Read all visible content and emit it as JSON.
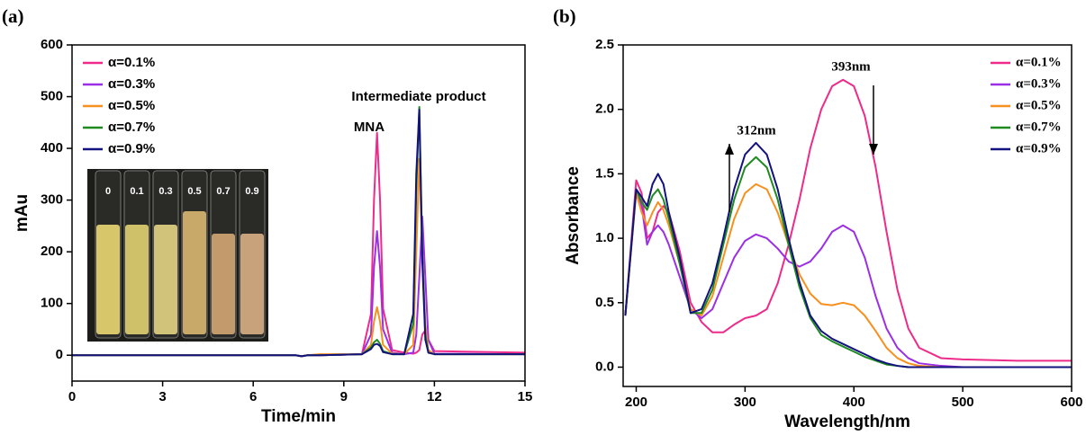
{
  "chart_data": [
    {
      "type": "line",
      "panel_label": "(a)",
      "x_label": "Time/min",
      "y_label": "mAu",
      "annotations": [
        "MNA",
        "Intermediate product"
      ],
      "inset_labels": [
        "0",
        "0.1",
        "0.3",
        "0.5",
        "0.7",
        "0.9"
      ],
      "x": [
        0,
        7.4,
        7.6,
        7.8,
        8.2,
        9.6,
        9.9,
        10.0,
        10.1,
        10.2,
        10.3,
        10.6,
        11.0,
        11.3,
        11.4,
        11.5,
        11.6,
        11.7,
        11.8,
        12.0,
        15
      ],
      "series": [
        {
          "name": "α=0.1%",
          "color": "#ee2a8a",
          "values": [
            0,
            0,
            -2,
            0,
            0,
            2,
            80,
            300,
            430,
            300,
            90,
            10,
            5,
            3,
            5,
            10,
            40,
            48,
            30,
            8,
            5
          ]
        },
        {
          "name": "α=0.3%",
          "color": "#9b2fe6",
          "values": [
            0,
            0,
            -2,
            0,
            0,
            2,
            40,
            170,
            240,
            170,
            50,
            5,
            2,
            5,
            40,
            150,
            268,
            150,
            30,
            3,
            2
          ]
        },
        {
          "name": "α=0.5%",
          "color": "#f7901e",
          "values": [
            0,
            0,
            -2,
            0,
            2,
            2,
            20,
            65,
            93,
            65,
            20,
            3,
            2,
            20,
            200,
            380,
            200,
            60,
            10,
            2,
            2
          ]
        },
        {
          "name": "α=0.7%",
          "color": "#1f8a1f",
          "values": [
            0,
            0,
            -2,
            0,
            0,
            2,
            15,
            25,
            30,
            22,
            8,
            2,
            2,
            60,
            320,
            480,
            200,
            40,
            5,
            2,
            2
          ]
        },
        {
          "name": "α=0.9%",
          "color": "#13137f",
          "values": [
            0,
            0,
            -2,
            0,
            0,
            2,
            12,
            20,
            22,
            18,
            6,
            2,
            2,
            80,
            350,
            475,
            180,
            30,
            5,
            2,
            2
          ]
        }
      ],
      "xlim": [
        0,
        15
      ],
      "ylim": [
        -50,
        600
      ],
      "xticks": [
        0,
        3,
        6,
        9,
        12,
        15
      ],
      "yticks": [
        0,
        100,
        200,
        300,
        400,
        500,
        600
      ],
      "legend": "upper left"
    },
    {
      "type": "line",
      "panel_label": "(b)",
      "x_label": "Wavelength/nm",
      "y_label": "Absorbance",
      "annotations": [
        "393nm",
        "312nm"
      ],
      "x": [
        190,
        200,
        205,
        210,
        215,
        220,
        225,
        230,
        240,
        250,
        260,
        270,
        280,
        290,
        300,
        310,
        320,
        330,
        340,
        350,
        360,
        370,
        380,
        390,
        400,
        410,
        420,
        430,
        440,
        450,
        460,
        480,
        500,
        550,
        600
      ],
      "series": [
        {
          "name": "α=0.1%",
          "color": "#ee2a8a",
          "values": [
            0.4,
            1.45,
            1.35,
            1.0,
            1.05,
            1.2,
            1.25,
            1.2,
            0.9,
            0.5,
            0.35,
            0.27,
            0.27,
            0.33,
            0.38,
            0.4,
            0.45,
            0.65,
            0.95,
            1.3,
            1.7,
            2.0,
            2.18,
            2.23,
            2.18,
            1.95,
            1.55,
            1.05,
            0.6,
            0.3,
            0.15,
            0.07,
            0.06,
            0.05,
            0.05
          ]
        },
        {
          "name": "α=0.3%",
          "color": "#9b2fe6",
          "values": [
            0.4,
            1.38,
            1.25,
            0.95,
            1.05,
            1.1,
            1.05,
            0.95,
            0.7,
            0.45,
            0.38,
            0.45,
            0.65,
            0.85,
            0.98,
            1.03,
            1.0,
            0.92,
            0.82,
            0.78,
            0.82,
            0.92,
            1.05,
            1.1,
            1.05,
            0.85,
            0.55,
            0.3,
            0.15,
            0.07,
            0.03,
            0.01,
            0,
            0,
            0
          ]
        },
        {
          "name": "α=0.5%",
          "color": "#f7901e",
          "values": [
            0.4,
            1.35,
            1.2,
            1.1,
            1.2,
            1.28,
            1.22,
            1.1,
            0.8,
            0.45,
            0.4,
            0.55,
            0.85,
            1.15,
            1.35,
            1.42,
            1.38,
            1.2,
            0.95,
            0.72,
            0.57,
            0.49,
            0.48,
            0.5,
            0.48,
            0.4,
            0.28,
            0.15,
            0.07,
            0.03,
            0.01,
            0,
            0,
            0,
            0
          ]
        },
        {
          "name": "α=0.7%",
          "color": "#1f8a1f",
          "values": [
            0.4,
            1.38,
            1.28,
            1.22,
            1.33,
            1.38,
            1.3,
            1.15,
            0.8,
            0.42,
            0.42,
            0.6,
            0.95,
            1.3,
            1.55,
            1.63,
            1.55,
            1.3,
            0.95,
            0.62,
            0.38,
            0.25,
            0.2,
            0.16,
            0.12,
            0.08,
            0.05,
            0.02,
            0.01,
            0,
            0,
            0,
            0,
            0,
            0
          ]
        },
        {
          "name": "α=0.9%",
          "color": "#13137f",
          "values": [
            0.4,
            1.38,
            1.32,
            1.25,
            1.42,
            1.5,
            1.42,
            1.2,
            0.85,
            0.42,
            0.45,
            0.65,
            1.0,
            1.38,
            1.65,
            1.74,
            1.65,
            1.38,
            1.0,
            0.66,
            0.4,
            0.28,
            0.22,
            0.18,
            0.14,
            0.1,
            0.06,
            0.03,
            0.01,
            0,
            0,
            0,
            0,
            0,
            0
          ]
        }
      ],
      "xlim": [
        188,
        600
      ],
      "ylim": [
        -0.15,
        2.5
      ],
      "xticks": [
        200,
        300,
        400,
        500,
        600
      ],
      "yticks": [
        {
          "value": 0,
          "label": "0.0"
        },
        0.5,
        {
          "value": 1,
          "label": "1.0"
        },
        1.5,
        {
          "value": 2,
          "label": "2.0"
        },
        2.5
      ],
      "legend": "upper right"
    }
  ]
}
